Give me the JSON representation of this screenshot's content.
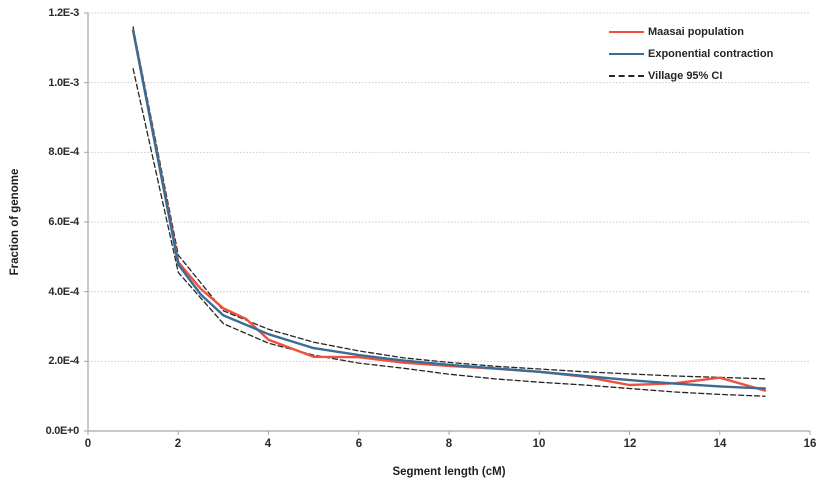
{
  "chart_data": {
    "type": "line",
    "title": "",
    "xlabel": "Segment length (cM)",
    "ylabel": "Fraction of genome",
    "xlim": [
      0,
      16
    ],
    "ylim": [
      0,
      0.0012
    ],
    "x_ticks": [
      0,
      2,
      4,
      6,
      8,
      10,
      12,
      14,
      16
    ],
    "y_ticks": [
      "1.2E-3",
      "1.0E-3",
      "8.0E-4",
      "6.0E-4",
      "4.0E-4",
      "2.0E-4",
      "0.0E+0"
    ],
    "y_tick_values": [
      0.0012,
      0.001,
      0.0008,
      0.0006,
      0.0004,
      0.0002,
      0
    ],
    "grid": "horizontal-dotted",
    "legend_position": "top-right",
    "legend": [
      "Maasai population",
      "Exponential contraction",
      "Village 95% CI"
    ],
    "colors": {
      "maasai": "#f0503c",
      "exponential": "#3a6d96",
      "ci": "#262626",
      "gridline": "#cccccc",
      "axis": "#a6a6a6"
    },
    "series": [
      {
        "name": "Maasai population",
        "style": "solid",
        "color": "#f0503c",
        "x": [
          1,
          2,
          2.5,
          3,
          3.5,
          4,
          5,
          6,
          7,
          8,
          9,
          10,
          11,
          12,
          13,
          14,
          15
        ],
        "y": [
          0.00115,
          0.000485,
          0.000408,
          0.000352,
          0.000322,
          0.000262,
          0.000213,
          0.000212,
          0.000196,
          0.000187,
          0.000179,
          0.00017,
          0.000156,
          0.000132,
          0.000137,
          0.000153,
          0.000116
        ]
      },
      {
        "name": "Exponential contraction",
        "style": "solid",
        "color": "#3a6d96",
        "x": [
          1,
          2,
          2.5,
          3,
          4,
          5,
          6,
          7,
          8,
          9,
          10,
          11,
          12,
          13,
          14,
          15
        ],
        "y": [
          0.00115,
          0.000478,
          0.000392,
          0.000332,
          0.000278,
          0.000238,
          0.000218,
          0.000202,
          0.00019,
          0.00018,
          0.00017,
          0.000158,
          0.000146,
          0.000136,
          0.000128,
          0.000122
        ]
      },
      {
        "name": "Village 95% CI upper",
        "style": "dashed",
        "color": "#262626",
        "x": [
          1,
          2,
          3,
          4,
          5,
          6,
          7,
          8,
          9,
          10,
          11,
          12,
          13,
          14,
          15
        ],
        "y": [
          0.00116,
          0.000505,
          0.000345,
          0.000292,
          0.000255,
          0.00023,
          0.00021,
          0.000197,
          0.000186,
          0.000178,
          0.00017,
          0.000164,
          0.000158,
          0.000154,
          0.00015
        ]
      },
      {
        "name": "Village 95% CI lower",
        "style": "dashed",
        "color": "#262626",
        "x": [
          1,
          2,
          3,
          4,
          5,
          6,
          7,
          8,
          9,
          10,
          11,
          12,
          13,
          14,
          15
        ],
        "y": [
          0.00104,
          0.000455,
          0.000308,
          0.000252,
          0.000218,
          0.000195,
          0.00018,
          0.000163,
          0.00015,
          0.00014,
          0.000132,
          0.000122,
          0.000112,
          0.000105,
          0.0001
        ]
      }
    ]
  }
}
